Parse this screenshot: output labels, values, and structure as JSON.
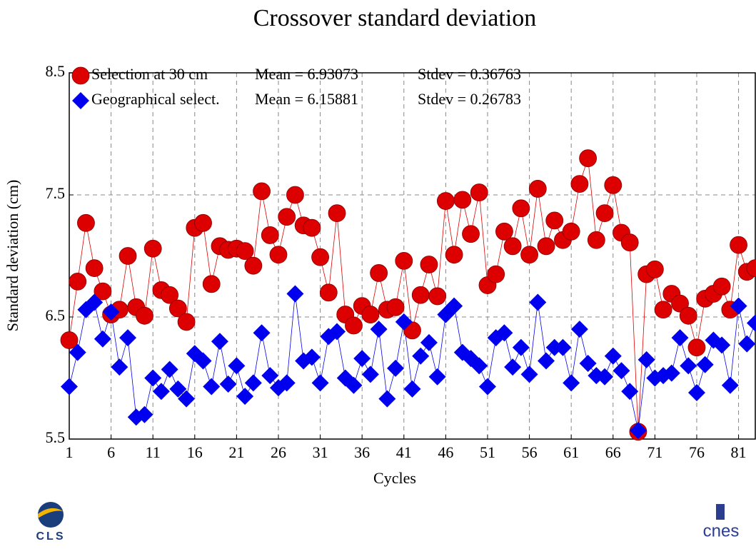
{
  "chart_data": {
    "type": "scatter",
    "title": "Crossover standard deviation",
    "xlabel": "Cycles",
    "ylabel": "Standard deviation (cm)",
    "x": [
      1,
      2,
      3,
      4,
      5,
      6,
      7,
      8,
      9,
      10,
      11,
      12,
      13,
      14,
      15,
      16,
      17,
      18,
      19,
      20,
      21,
      22,
      23,
      24,
      25,
      26,
      27,
      28,
      29,
      30,
      31,
      32,
      33,
      34,
      35,
      36,
      37,
      38,
      39,
      40,
      41,
      42,
      43,
      44,
      45,
      46,
      47,
      48,
      49,
      50,
      51,
      52,
      53,
      54,
      55,
      56,
      57,
      58,
      59,
      60,
      61,
      62,
      63,
      64,
      65,
      66,
      67,
      68,
      69,
      70,
      71,
      72,
      73,
      74,
      75,
      76,
      77,
      78,
      79,
      80,
      81,
      82,
      83
    ],
    "series": [
      {
        "name": "Selection at 30 cm",
        "mean_label": "Mean = 6.93073",
        "stdev_label": "Stdev = 0.36763",
        "color": "#dd0000",
        "marker": "circle",
        "values": [
          6.31,
          6.79,
          7.27,
          6.9,
          6.71,
          6.52,
          6.56,
          7.0,
          6.58,
          6.51,
          7.06,
          6.72,
          6.68,
          6.57,
          6.46,
          7.23,
          7.27,
          6.77,
          7.08,
          7.05,
          7.06,
          7.04,
          6.92,
          7.53,
          7.17,
          7.01,
          7.32,
          7.5,
          7.25,
          7.23,
          6.99,
          6.7,
          7.35,
          6.52,
          6.43,
          6.59,
          6.52,
          6.86,
          6.56,
          6.58,
          6.96,
          6.39,
          6.68,
          6.93,
          6.67,
          7.45,
          7.01,
          7.46,
          7.18,
          7.52,
          6.76,
          6.85,
          7.2,
          7.08,
          7.39,
          7.01,
          7.55,
          7.08,
          7.29,
          7.13,
          7.2,
          7.59,
          7.8,
          7.13,
          7.35,
          7.58,
          7.19,
          7.11,
          5.56,
          6.85,
          6.89,
          6.56,
          6.69,
          6.61,
          6.51,
          6.25,
          6.65,
          6.69,
          6.75,
          6.56,
          7.09,
          6.87,
          6.9
        ]
      },
      {
        "name": "Geographical select.",
        "mean_label": "Mean = 6.15881",
        "stdev_label": "Stdev = 0.26783",
        "color": "#0000ee",
        "marker": "diamond",
        "values": [
          5.93,
          6.21,
          6.56,
          6.62,
          6.32,
          6.54,
          6.09,
          6.33,
          5.68,
          5.7,
          6.0,
          5.89,
          6.07,
          5.91,
          5.83,
          6.2,
          6.14,
          5.93,
          6.3,
          5.95,
          6.1,
          5.85,
          5.96,
          6.37,
          6.02,
          5.92,
          5.96,
          6.69,
          6.14,
          6.17,
          5.96,
          6.34,
          6.38,
          6.0,
          5.94,
          6.16,
          6.03,
          6.4,
          5.83,
          6.08,
          6.46,
          5.91,
          6.18,
          6.29,
          6.01,
          6.52,
          6.59,
          6.21,
          6.16,
          6.1,
          5.93,
          6.33,
          6.37,
          6.09,
          6.25,
          6.03,
          6.62,
          6.14,
          6.25,
          6.25,
          5.96,
          6.4,
          6.12,
          6.02,
          6.01,
          6.18,
          6.06,
          5.89,
          5.57,
          6.15,
          6.0,
          6.02,
          6.04,
          6.33,
          6.1,
          5.88,
          6.11,
          6.31,
          6.27,
          5.94,
          6.59,
          6.28,
          6.45
        ]
      }
    ],
    "xlim": [
      1,
      83
    ],
    "xticks": [
      1,
      6,
      11,
      16,
      21,
      26,
      31,
      36,
      41,
      46,
      51,
      56,
      61,
      66,
      71,
      76,
      81
    ],
    "ylim": [
      5.5,
      8.5
    ],
    "yticks": [
      5.5,
      6.5,
      7.5,
      8.5
    ],
    "grid": true
  },
  "logos": {
    "left": "CLS",
    "right": "cnes"
  }
}
